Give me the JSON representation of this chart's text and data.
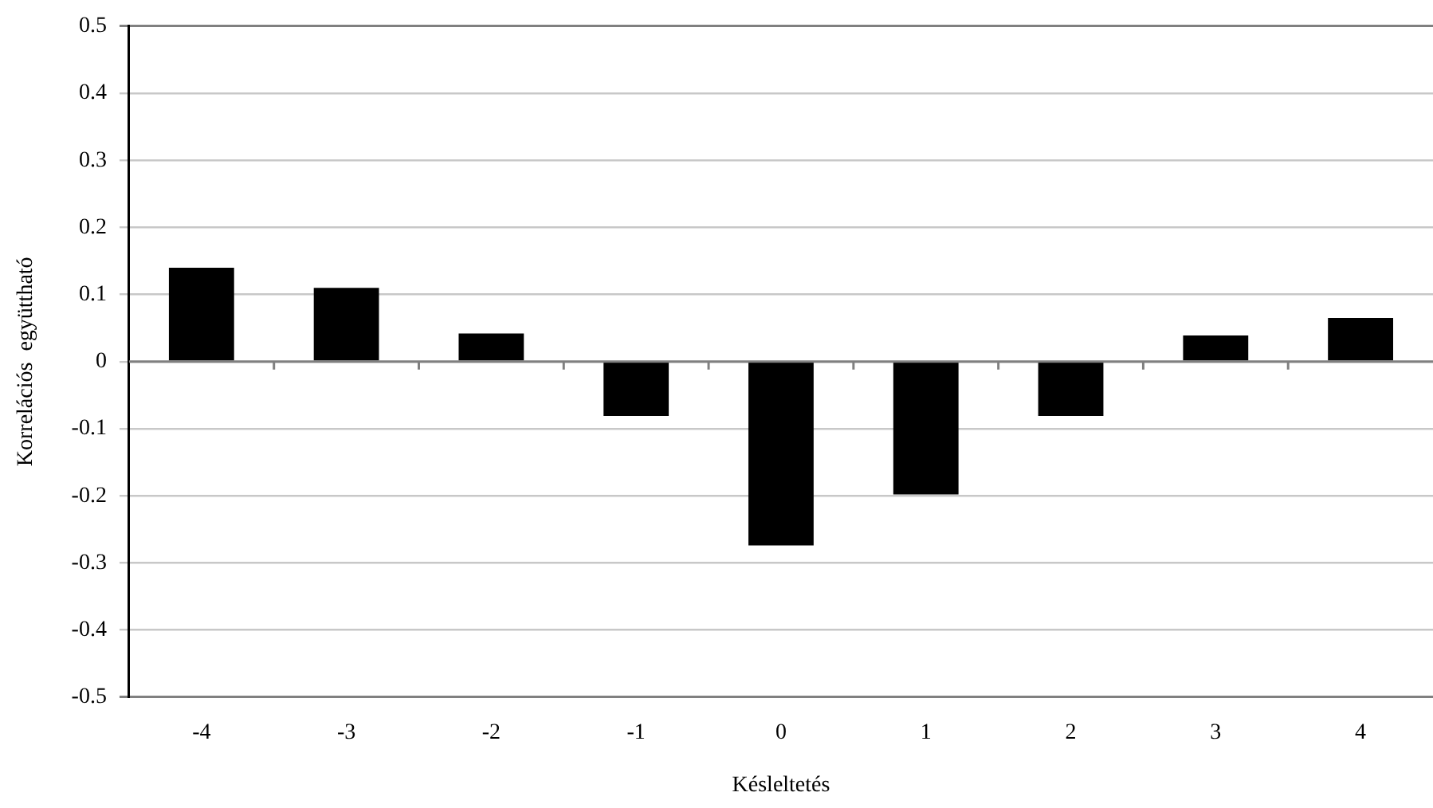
{
  "chart_data": {
    "type": "bar",
    "xlabel": "Késleltetés",
    "ylabel": "Korrelációs  együttható",
    "categories": [
      "-4",
      "-3",
      "-2",
      "-1",
      "0",
      "1",
      "2",
      "3",
      "4"
    ],
    "values": [
      0.14,
      0.11,
      0.042,
      -0.081,
      -0.274,
      -0.198,
      -0.081,
      0.039,
      0.065
    ],
    "color": "#000000",
    "ylim": [
      -0.5,
      0.5
    ],
    "yticks": [
      -0.5,
      -0.4,
      -0.3,
      -0.2,
      -0.1,
      0,
      0.1,
      0.2,
      0.3,
      0.4,
      0.5
    ],
    "grid": "y",
    "legend": false
  }
}
